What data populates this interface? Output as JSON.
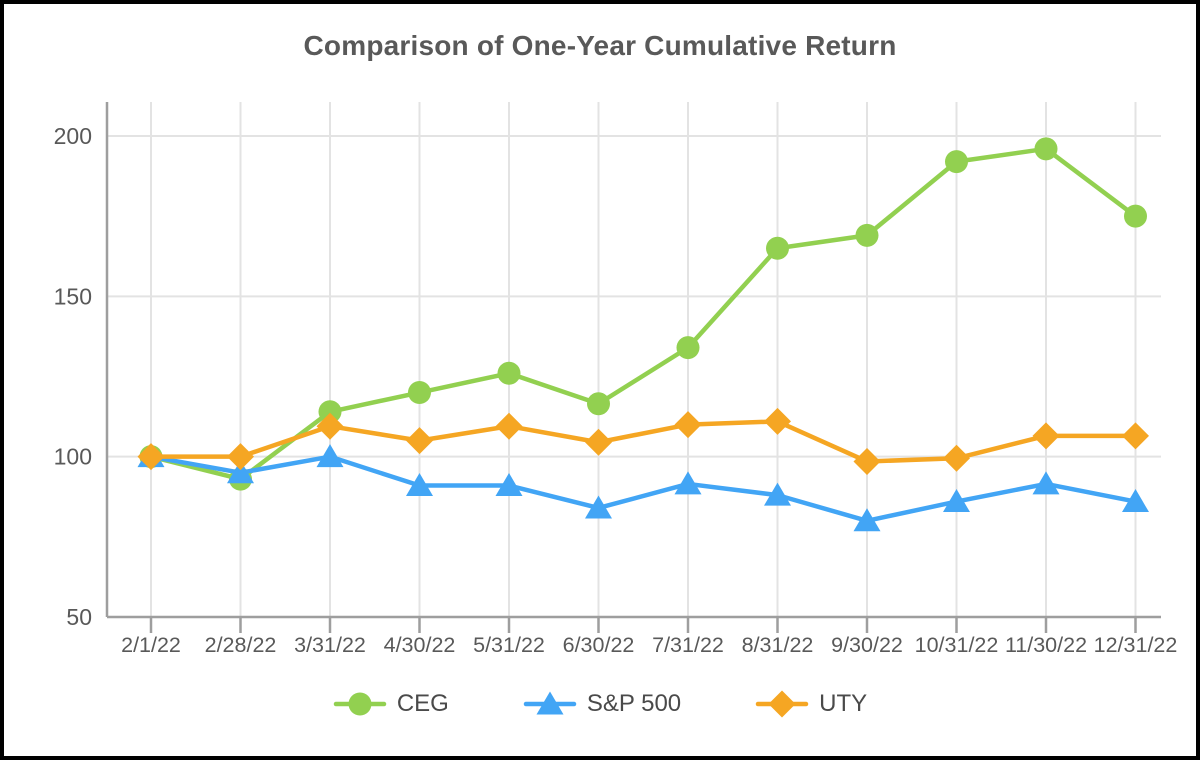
{
  "title": "Comparison of One-Year Cumulative Return",
  "colors": {
    "ceg": "#92D050",
    "sp500": "#42A5F5",
    "uty": "#F5A623",
    "grid": "#E3E3E3",
    "axis": "#9E9E9E",
    "tick_label": "#595959",
    "legend_text": "#4a4a4a",
    "title_text": "#595959",
    "frame_border": "#000000"
  },
  "chart_data": {
    "type": "line",
    "title": "Comparison of One-Year Cumulative Return",
    "xlabel": "",
    "ylabel": "",
    "x_labels": [
      "2/1/22",
      "2/28/22",
      "3/31/22",
      "4/30/22",
      "5/31/22",
      "6/30/22",
      "7/31/22",
      "8/31/22",
      "9/30/22",
      "10/31/22",
      "11/30/22",
      "12/31/22"
    ],
    "yticks": [
      50,
      100,
      150,
      200
    ],
    "ylim": [
      50,
      211
    ],
    "grid": true,
    "legend_position": "bottom",
    "series": [
      {
        "name": "CEG",
        "marker": "circle",
        "color": "#92D050",
        "values": [
          100,
          93,
          114,
          120,
          126,
          116.5,
          134,
          165,
          169,
          192,
          196,
          175
        ]
      },
      {
        "name": "S&P 500",
        "marker": "triangle",
        "color": "#42A5F5",
        "values": [
          100,
          95,
          100,
          91,
          91,
          84,
          91.5,
          88,
          80,
          86,
          91.5,
          86
        ]
      },
      {
        "name": "UTY",
        "marker": "diamond",
        "color": "#F5A623",
        "values": [
          100,
          100,
          109.5,
          105,
          109.5,
          104.5,
          110,
          111,
          98.5,
          99.5,
          106.5,
          106.5
        ]
      }
    ]
  }
}
